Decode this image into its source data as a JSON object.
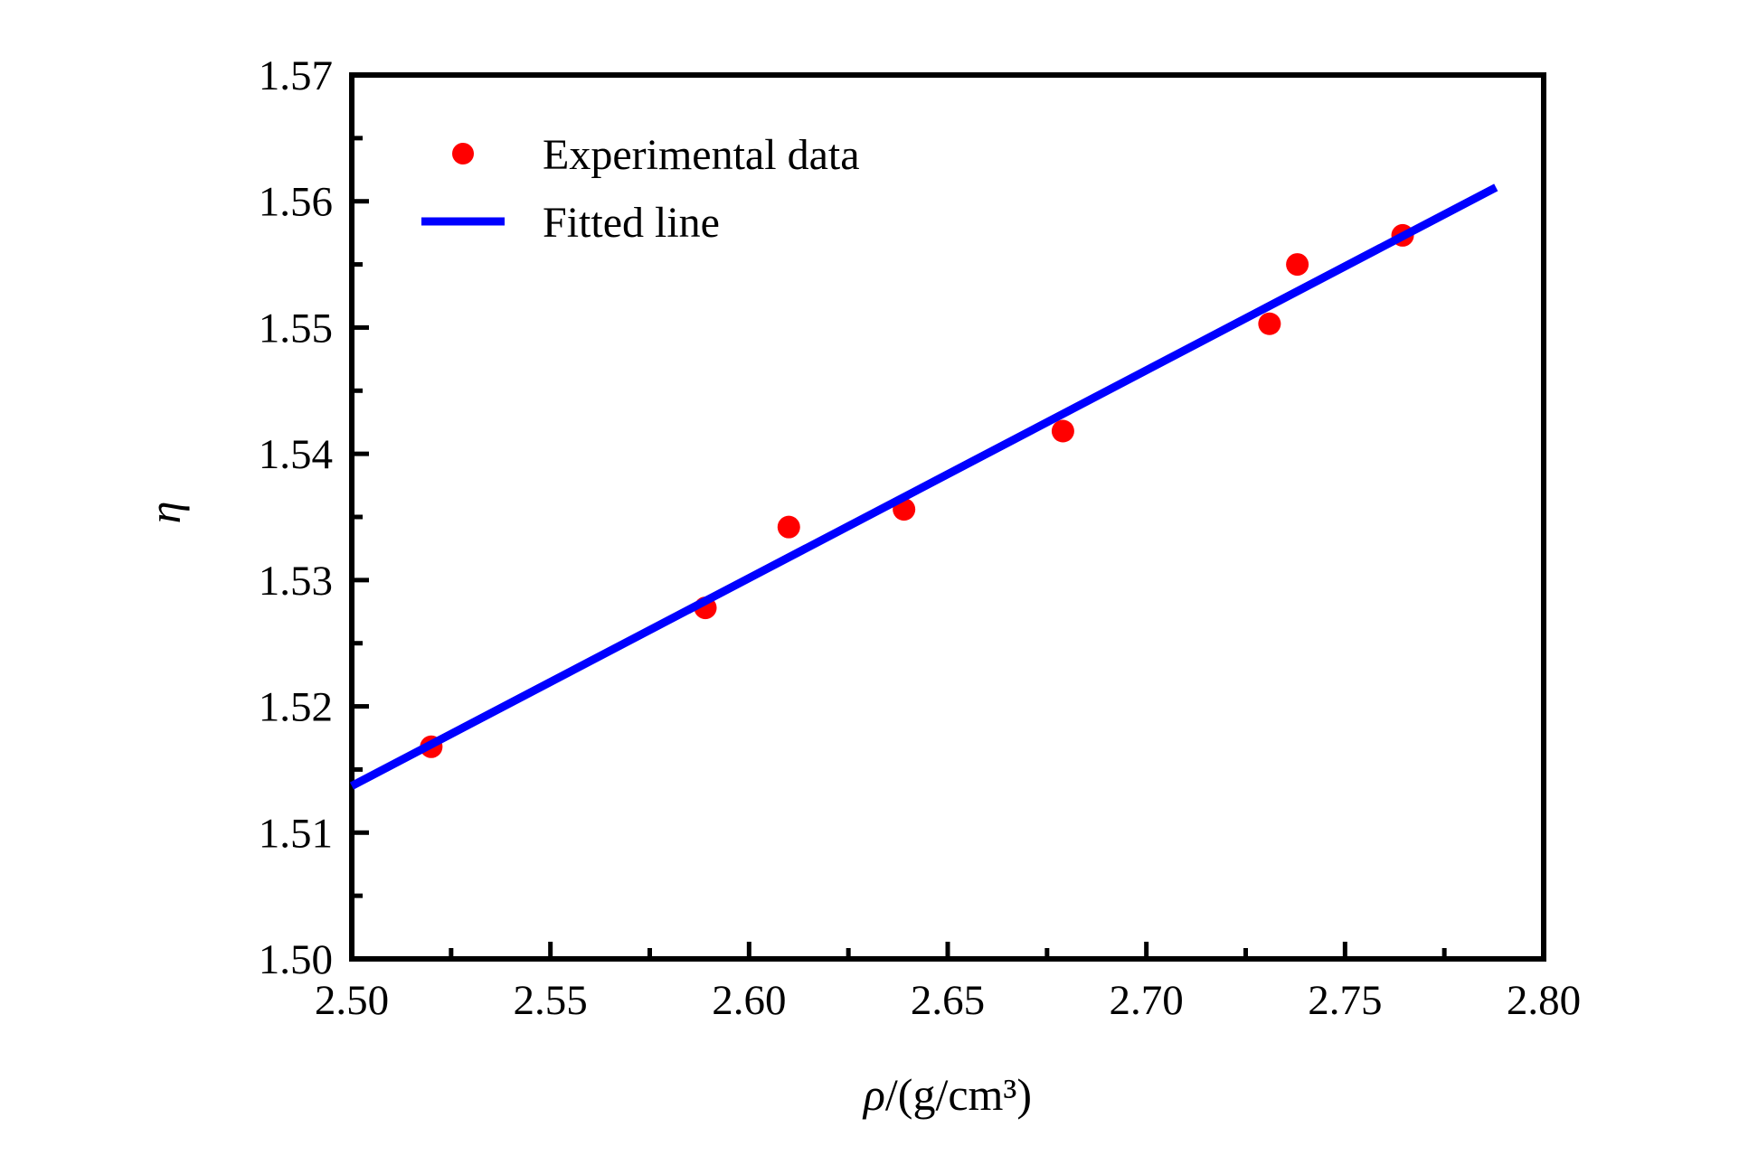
{
  "figure": {
    "background": "#ffffff",
    "xlabel_symbol": "ρ",
    "xlabel_rest": "/(g/cm³)",
    "ylabel": "η",
    "legend": [
      {
        "label": "Experimental data",
        "marker": "dot",
        "color": "#ff0000"
      },
      {
        "label": "Fitted line",
        "marker": "line",
        "color": "#0000ff"
      }
    ]
  },
  "chart_data": {
    "type": "scatter",
    "title": "",
    "xlabel": "ρ/(g/cm³)",
    "ylabel": "η",
    "xlim": [
      2.5,
      2.8
    ],
    "ylim": [
      1.5,
      1.57
    ],
    "grid": false,
    "legend_position": "upper-left-inside",
    "series": [
      {
        "name": "Experimental data",
        "type": "scatter",
        "color": "#ff0000",
        "points": [
          [
            2.52,
            1.5168
          ],
          [
            2.589,
            1.5278
          ],
          [
            2.61,
            1.5342
          ],
          [
            2.639,
            1.5356
          ],
          [
            2.679,
            1.5418
          ],
          [
            2.731,
            1.5503
          ],
          [
            2.738,
            1.555
          ],
          [
            2.7645,
            1.5573
          ]
        ]
      },
      {
        "name": "Fitted line",
        "type": "line",
        "color": "#0000ff",
        "points": [
          [
            2.5,
            1.5137
          ],
          [
            2.788,
            1.5611
          ]
        ]
      }
    ],
    "x_ticks": {
      "values": [
        2.5,
        2.55,
        2.6,
        2.65,
        2.7,
        2.75,
        2.8
      ],
      "labels": [
        "2.50",
        "2.55",
        "2.60",
        "2.65",
        "2.70",
        "2.75",
        "2.80"
      ],
      "minor": [
        2.525,
        2.575,
        2.625,
        2.675,
        2.725,
        2.775
      ]
    },
    "y_ticks": {
      "values": [
        1.5,
        1.51,
        1.52,
        1.53,
        1.54,
        1.55,
        1.56,
        1.57
      ],
      "labels": [
        "1.50",
        "1.51",
        "1.52",
        "1.53",
        "1.54",
        "1.55",
        "1.56",
        "1.57"
      ],
      "minor": [
        1.505,
        1.515,
        1.525,
        1.535,
        1.545,
        1.555,
        1.565
      ]
    },
    "axis_color": "#000000"
  }
}
